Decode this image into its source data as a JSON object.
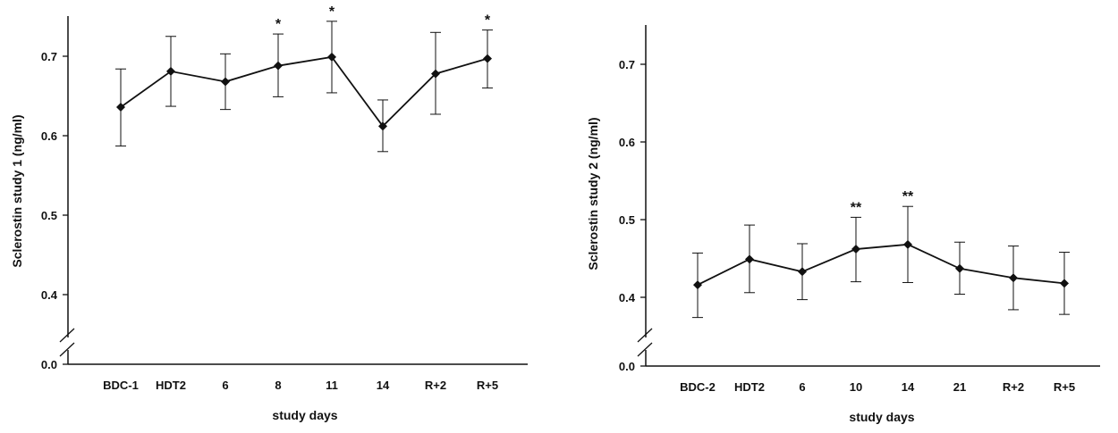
{
  "chart_data": [
    {
      "type": "line",
      "xlabel": "study days",
      "ylabel": "Sclerostin study 1 (ng/ml)",
      "categories": [
        "BDC-1",
        "HDT2",
        "6",
        "8",
        "11",
        "14",
        "R+2",
        "R+5"
      ],
      "values": [
        0.636,
        0.681,
        0.668,
        0.688,
        0.699,
        0.612,
        0.678,
        0.697
      ],
      "error_upper": [
        0.684,
        0.725,
        0.703,
        0.728,
        0.744,
        0.645,
        0.73,
        0.733
      ],
      "error_lower": [
        0.587,
        0.637,
        0.633,
        0.649,
        0.654,
        0.58,
        0.627,
        0.66
      ],
      "significance": [
        "",
        "",
        "",
        "*",
        "*",
        "",
        "",
        "*"
      ],
      "yticks": [
        0.0,
        0.4,
        0.5,
        0.6,
        0.7
      ],
      "ytick_labels": [
        "0.0",
        "0.4",
        "0.5",
        "0.6",
        "0.7"
      ],
      "ylim": [
        0.35,
        0.75
      ],
      "axis_break": true,
      "grid": false,
      "marker": "diamond",
      "line_color": "#111111"
    },
    {
      "type": "line",
      "xlabel": "study days",
      "ylabel": "Sclerostin study 2 (ng/ml)",
      "categories": [
        "BDC-2",
        "HDT2",
        "6",
        "10",
        "14",
        "21",
        "R+2",
        "R+5"
      ],
      "values": [
        0.416,
        0.449,
        0.433,
        0.462,
        0.468,
        0.437,
        0.425,
        0.418
      ],
      "error_upper": [
        0.457,
        0.493,
        0.469,
        0.503,
        0.517,
        0.471,
        0.466,
        0.458
      ],
      "error_lower": [
        0.374,
        0.406,
        0.397,
        0.42,
        0.419,
        0.404,
        0.384,
        0.378
      ],
      "significance": [
        "",
        "",
        "",
        "**",
        "**",
        "",
        "",
        ""
      ],
      "yticks": [
        0.0,
        0.4,
        0.5,
        0.6,
        0.7
      ],
      "ytick_labels": [
        "0.0",
        "0.4",
        "0.5",
        "0.6",
        "0.7"
      ],
      "ylim": [
        0.35,
        0.75
      ],
      "axis_break": true,
      "grid": false,
      "marker": "diamond",
      "line_color": "#111111"
    }
  ]
}
